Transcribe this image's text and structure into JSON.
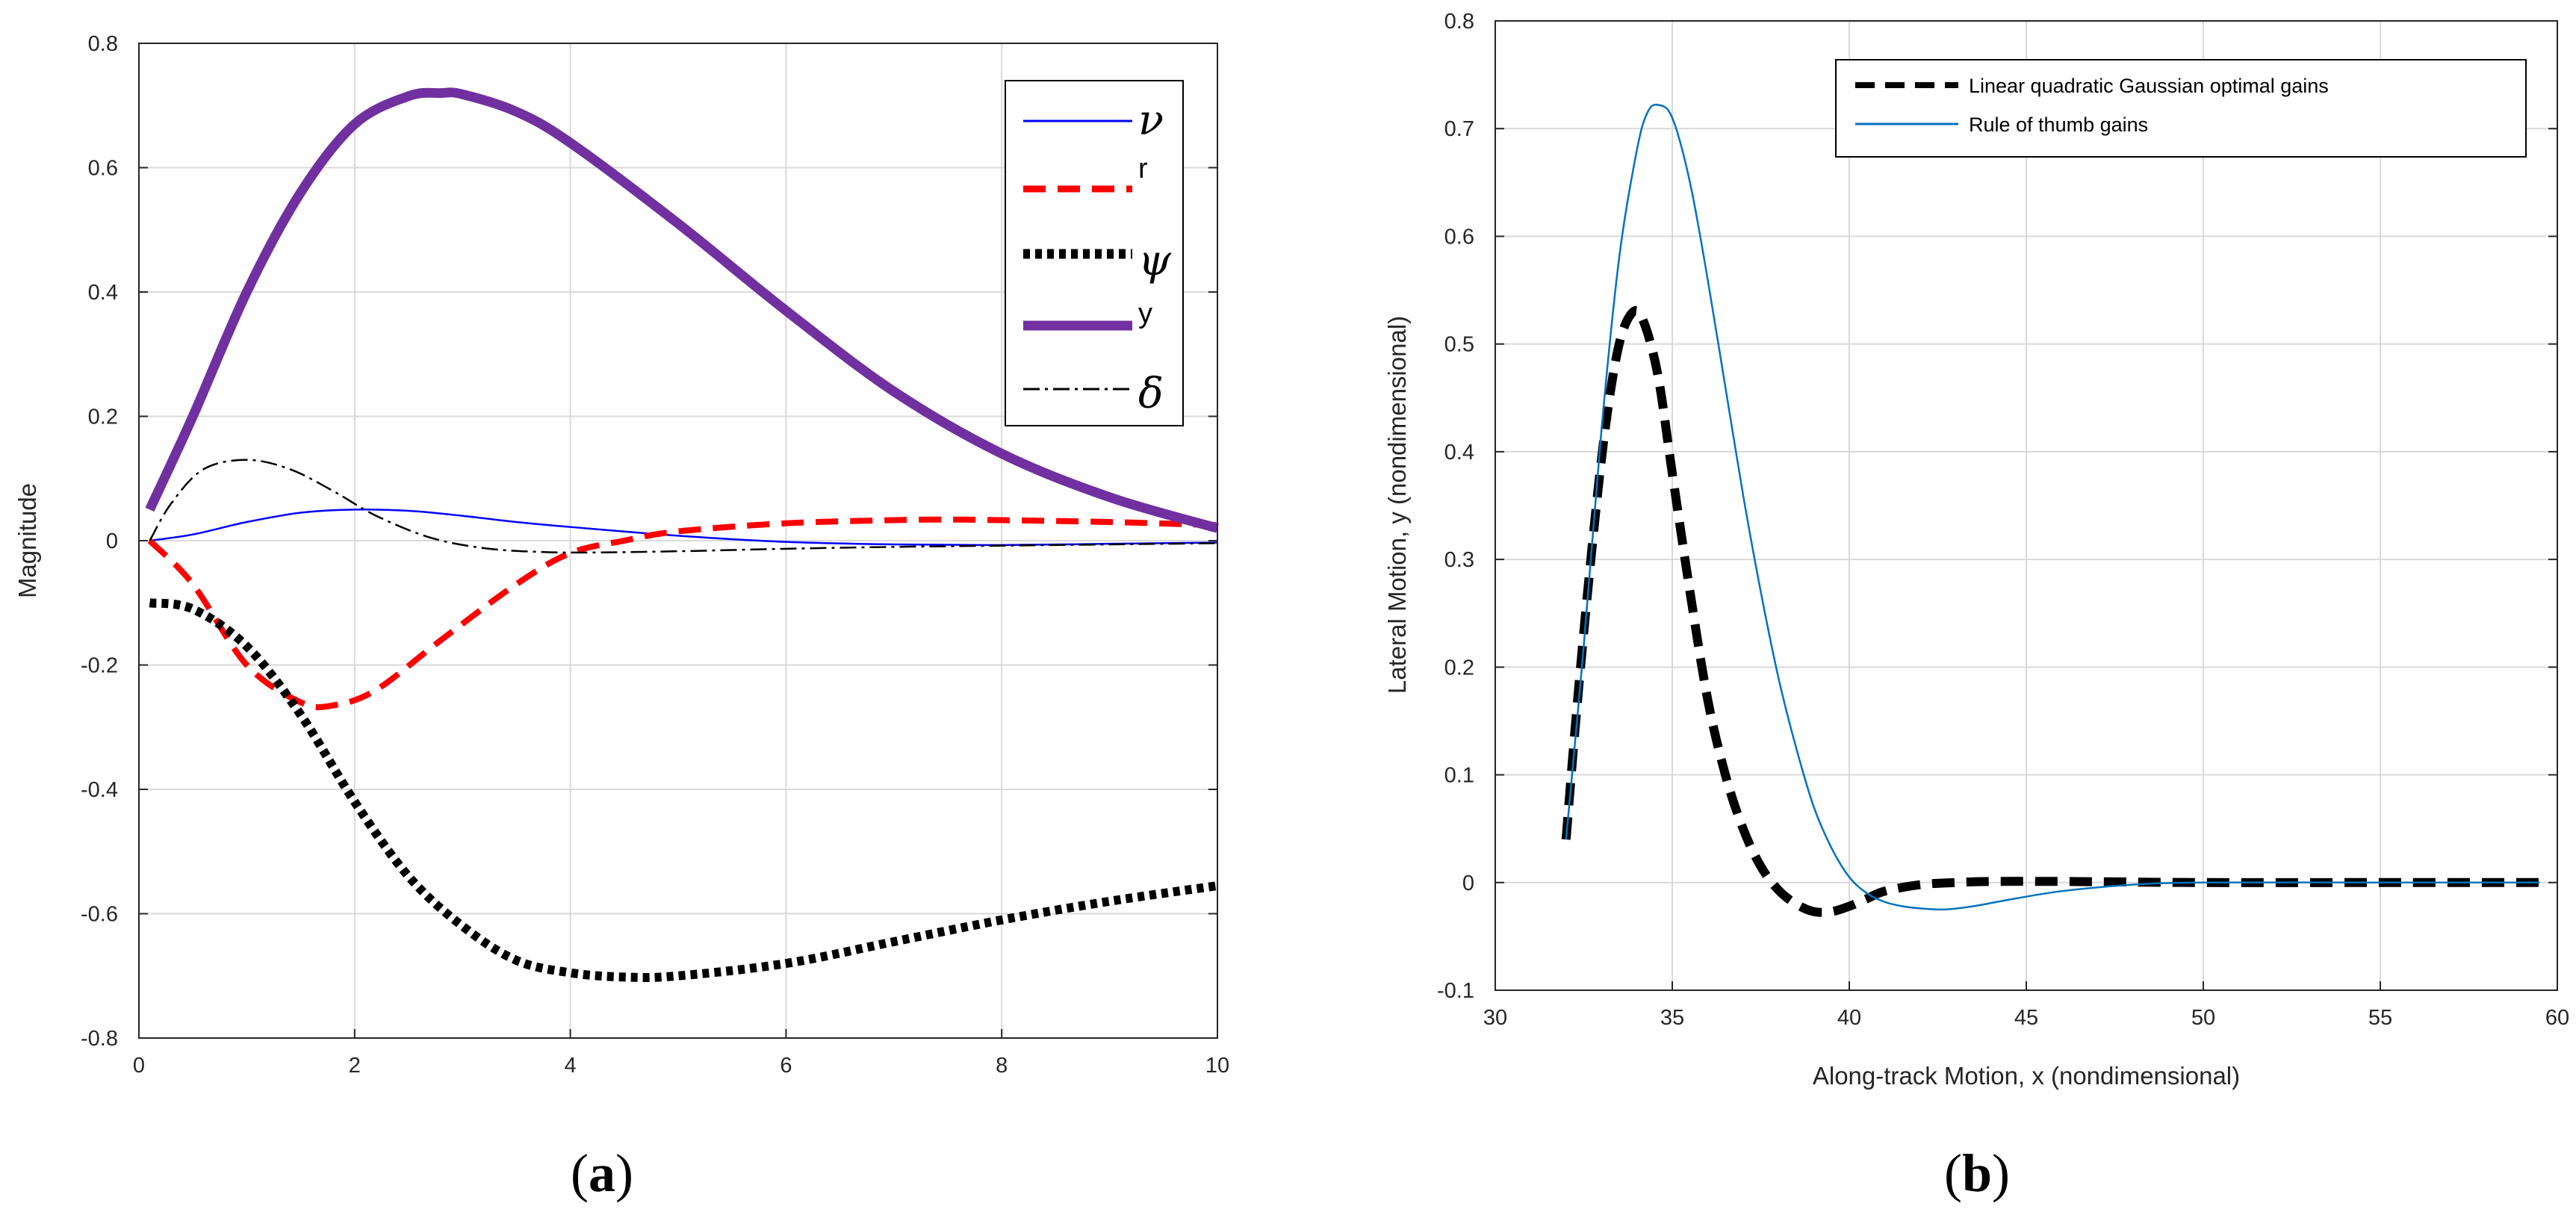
{
  "figure": {
    "panel_a_label": "a",
    "panel_b_label": "b"
  },
  "chart_data": [
    {
      "id": "a",
      "type": "line",
      "title": "",
      "xlabel": "",
      "ylabel": "Magnitude",
      "xlim": [
        0,
        10
      ],
      "ylim": [
        -0.8,
        0.8
      ],
      "xticks": [
        0,
        2,
        4,
        6,
        8,
        10
      ],
      "xtick_labels": [
        "0",
        "2",
        "4",
        "6",
        "8",
        "10"
      ],
      "yticks": [
        -0.8,
        -0.6,
        -0.4,
        -0.2,
        0,
        0.2,
        0.4,
        0.6,
        0.8
      ],
      "ytick_labels": [
        "-0.8",
        "-0.6",
        "-0.4",
        "-0.2",
        "0",
        "0.2",
        "0.4",
        "0.6",
        "0.8"
      ],
      "grid": true,
      "legend_position": "top-right",
      "series": [
        {
          "name": "ν",
          "label_style": "symbol",
          "color": "#0000ff",
          "style": "solid",
          "weight": "thin",
          "x": [
            0.1,
            0.5,
            1,
            1.5,
            2,
            2.5,
            3,
            3.5,
            4,
            5,
            6,
            7,
            8,
            9,
            10
          ],
          "y": [
            0.0,
            0.01,
            0.03,
            0.045,
            0.05,
            0.048,
            0.04,
            0.03,
            0.022,
            0.008,
            -0.002,
            -0.006,
            -0.007,
            -0.005,
            -0.003
          ]
        },
        {
          "name": "r",
          "label_style": "text",
          "color": "#ff0000",
          "style": "dashed",
          "weight": "medium",
          "x": [
            0.1,
            0.5,
            1,
            1.5,
            1.8,
            2.2,
            2.8,
            3.5,
            4,
            4.5,
            5,
            6,
            7,
            7.5,
            8,
            9,
            10
          ],
          "y": [
            0.0,
            -0.07,
            -0.2,
            -0.26,
            -0.265,
            -0.24,
            -0.16,
            -0.07,
            -0.02,
            0.0,
            0.015,
            0.028,
            0.033,
            0.034,
            0.033,
            0.03,
            0.025
          ]
        },
        {
          "name": "ψ",
          "label_style": "symbol",
          "color": "#000000",
          "style": "dotted",
          "weight": "thick",
          "x": [
            0.1,
            0.5,
            1,
            1.5,
            2,
            2.5,
            3,
            3.5,
            4,
            4.5,
            5,
            6,
            7,
            8,
            9,
            10
          ],
          "y": [
            -0.1,
            -0.11,
            -0.17,
            -0.28,
            -0.42,
            -0.54,
            -0.62,
            -0.675,
            -0.695,
            -0.702,
            -0.7,
            -0.68,
            -0.645,
            -0.61,
            -0.58,
            -0.555
          ]
        },
        {
          "name": "y",
          "label_style": "text",
          "color": "#7030a0",
          "style": "solid",
          "weight": "heavy",
          "x": [
            0.1,
            0.5,
            1,
            1.5,
            2,
            2.5,
            2.8,
            3,
            3.5,
            4,
            5,
            6,
            7,
            8,
            9,
            10
          ],
          "y": [
            0.05,
            0.2,
            0.4,
            0.56,
            0.67,
            0.715,
            0.72,
            0.718,
            0.69,
            0.64,
            0.51,
            0.37,
            0.24,
            0.14,
            0.07,
            0.02
          ]
        },
        {
          "name": "δ",
          "label_style": "symbol",
          "color": "#000000",
          "style": "dashdot",
          "weight": "thin",
          "x": [
            0.1,
            0.3,
            0.6,
            1,
            1.4,
            1.8,
            2.2,
            2.7,
            3.2,
            3.7,
            4.2,
            5,
            6,
            7,
            8,
            9,
            10
          ],
          "y": [
            0.0,
            0.06,
            0.115,
            0.13,
            0.115,
            0.08,
            0.04,
            0.005,
            -0.012,
            -0.018,
            -0.019,
            -0.017,
            -0.013,
            -0.01,
            -0.008,
            -0.006,
            -0.004
          ]
        }
      ]
    },
    {
      "id": "b",
      "type": "line",
      "title": "",
      "xlabel": "Along-track Motion, x (nondimensional)",
      "ylabel": "Lateral Motion, y (nondimensional)",
      "xlim": [
        30,
        60
      ],
      "ylim": [
        -0.1,
        0.8
      ],
      "xticks": [
        30,
        35,
        40,
        45,
        50,
        55,
        60
      ],
      "xtick_labels": [
        "30",
        "35",
        "40",
        "45",
        "50",
        "55",
        "60"
      ],
      "yticks": [
        -0.1,
        0,
        0.1,
        0.2,
        0.3,
        0.4,
        0.5,
        0.6,
        0.7,
        0.8
      ],
      "ytick_labels": [
        "-0.1",
        "0",
        "0.1",
        "0.2",
        "0.3",
        "0.4",
        "0.5",
        "0.6",
        "0.7",
        "0.8"
      ],
      "grid": true,
      "legend_position": "top-right",
      "series": [
        {
          "name": "Linear quadratic Gaussian optimal gains",
          "color": "#000000",
          "style": "dashed",
          "weight": "thick",
          "x": [
            32,
            32.3,
            32.7,
            33.1,
            33.5,
            33.9,
            34.2,
            34.6,
            35,
            35.5,
            36,
            36.5,
            37,
            37.5,
            38,
            38.5,
            39,
            39.5,
            40,
            40.5,
            41,
            42,
            43,
            44,
            46,
            50,
            55,
            59.5
          ],
          "y": [
            0.04,
            0.16,
            0.3,
            0.42,
            0.5,
            0.53,
            0.52,
            0.47,
            0.38,
            0.27,
            0.17,
            0.1,
            0.05,
            0.015,
            -0.007,
            -0.02,
            -0.027,
            -0.027,
            -0.022,
            -0.015,
            -0.008,
            -0.002,
            0.0,
            0.001,
            0.001,
            0.0,
            0.0,
            0.0
          ]
        },
        {
          "name": "Rule of thumb gains",
          "color": "#0072bd",
          "style": "solid",
          "weight": "thin",
          "x": [
            32,
            32.5,
            33,
            33.5,
            34,
            34.3,
            34.6,
            35,
            35.5,
            36,
            36.5,
            37,
            37.5,
            38,
            38.5,
            39,
            39.5,
            40,
            40.5,
            41,
            41.5,
            42,
            42.7,
            43.5,
            44.5,
            46,
            48,
            50,
            55,
            59.5
          ],
          "y": [
            0.04,
            0.22,
            0.42,
            0.58,
            0.68,
            0.715,
            0.722,
            0.71,
            0.65,
            0.56,
            0.46,
            0.36,
            0.27,
            0.19,
            0.125,
            0.07,
            0.032,
            0.005,
            -0.01,
            -0.018,
            -0.022,
            -0.024,
            -0.025,
            -0.022,
            -0.016,
            -0.008,
            -0.002,
            0.0,
            0.0,
            0.0
          ]
        }
      ]
    }
  ]
}
